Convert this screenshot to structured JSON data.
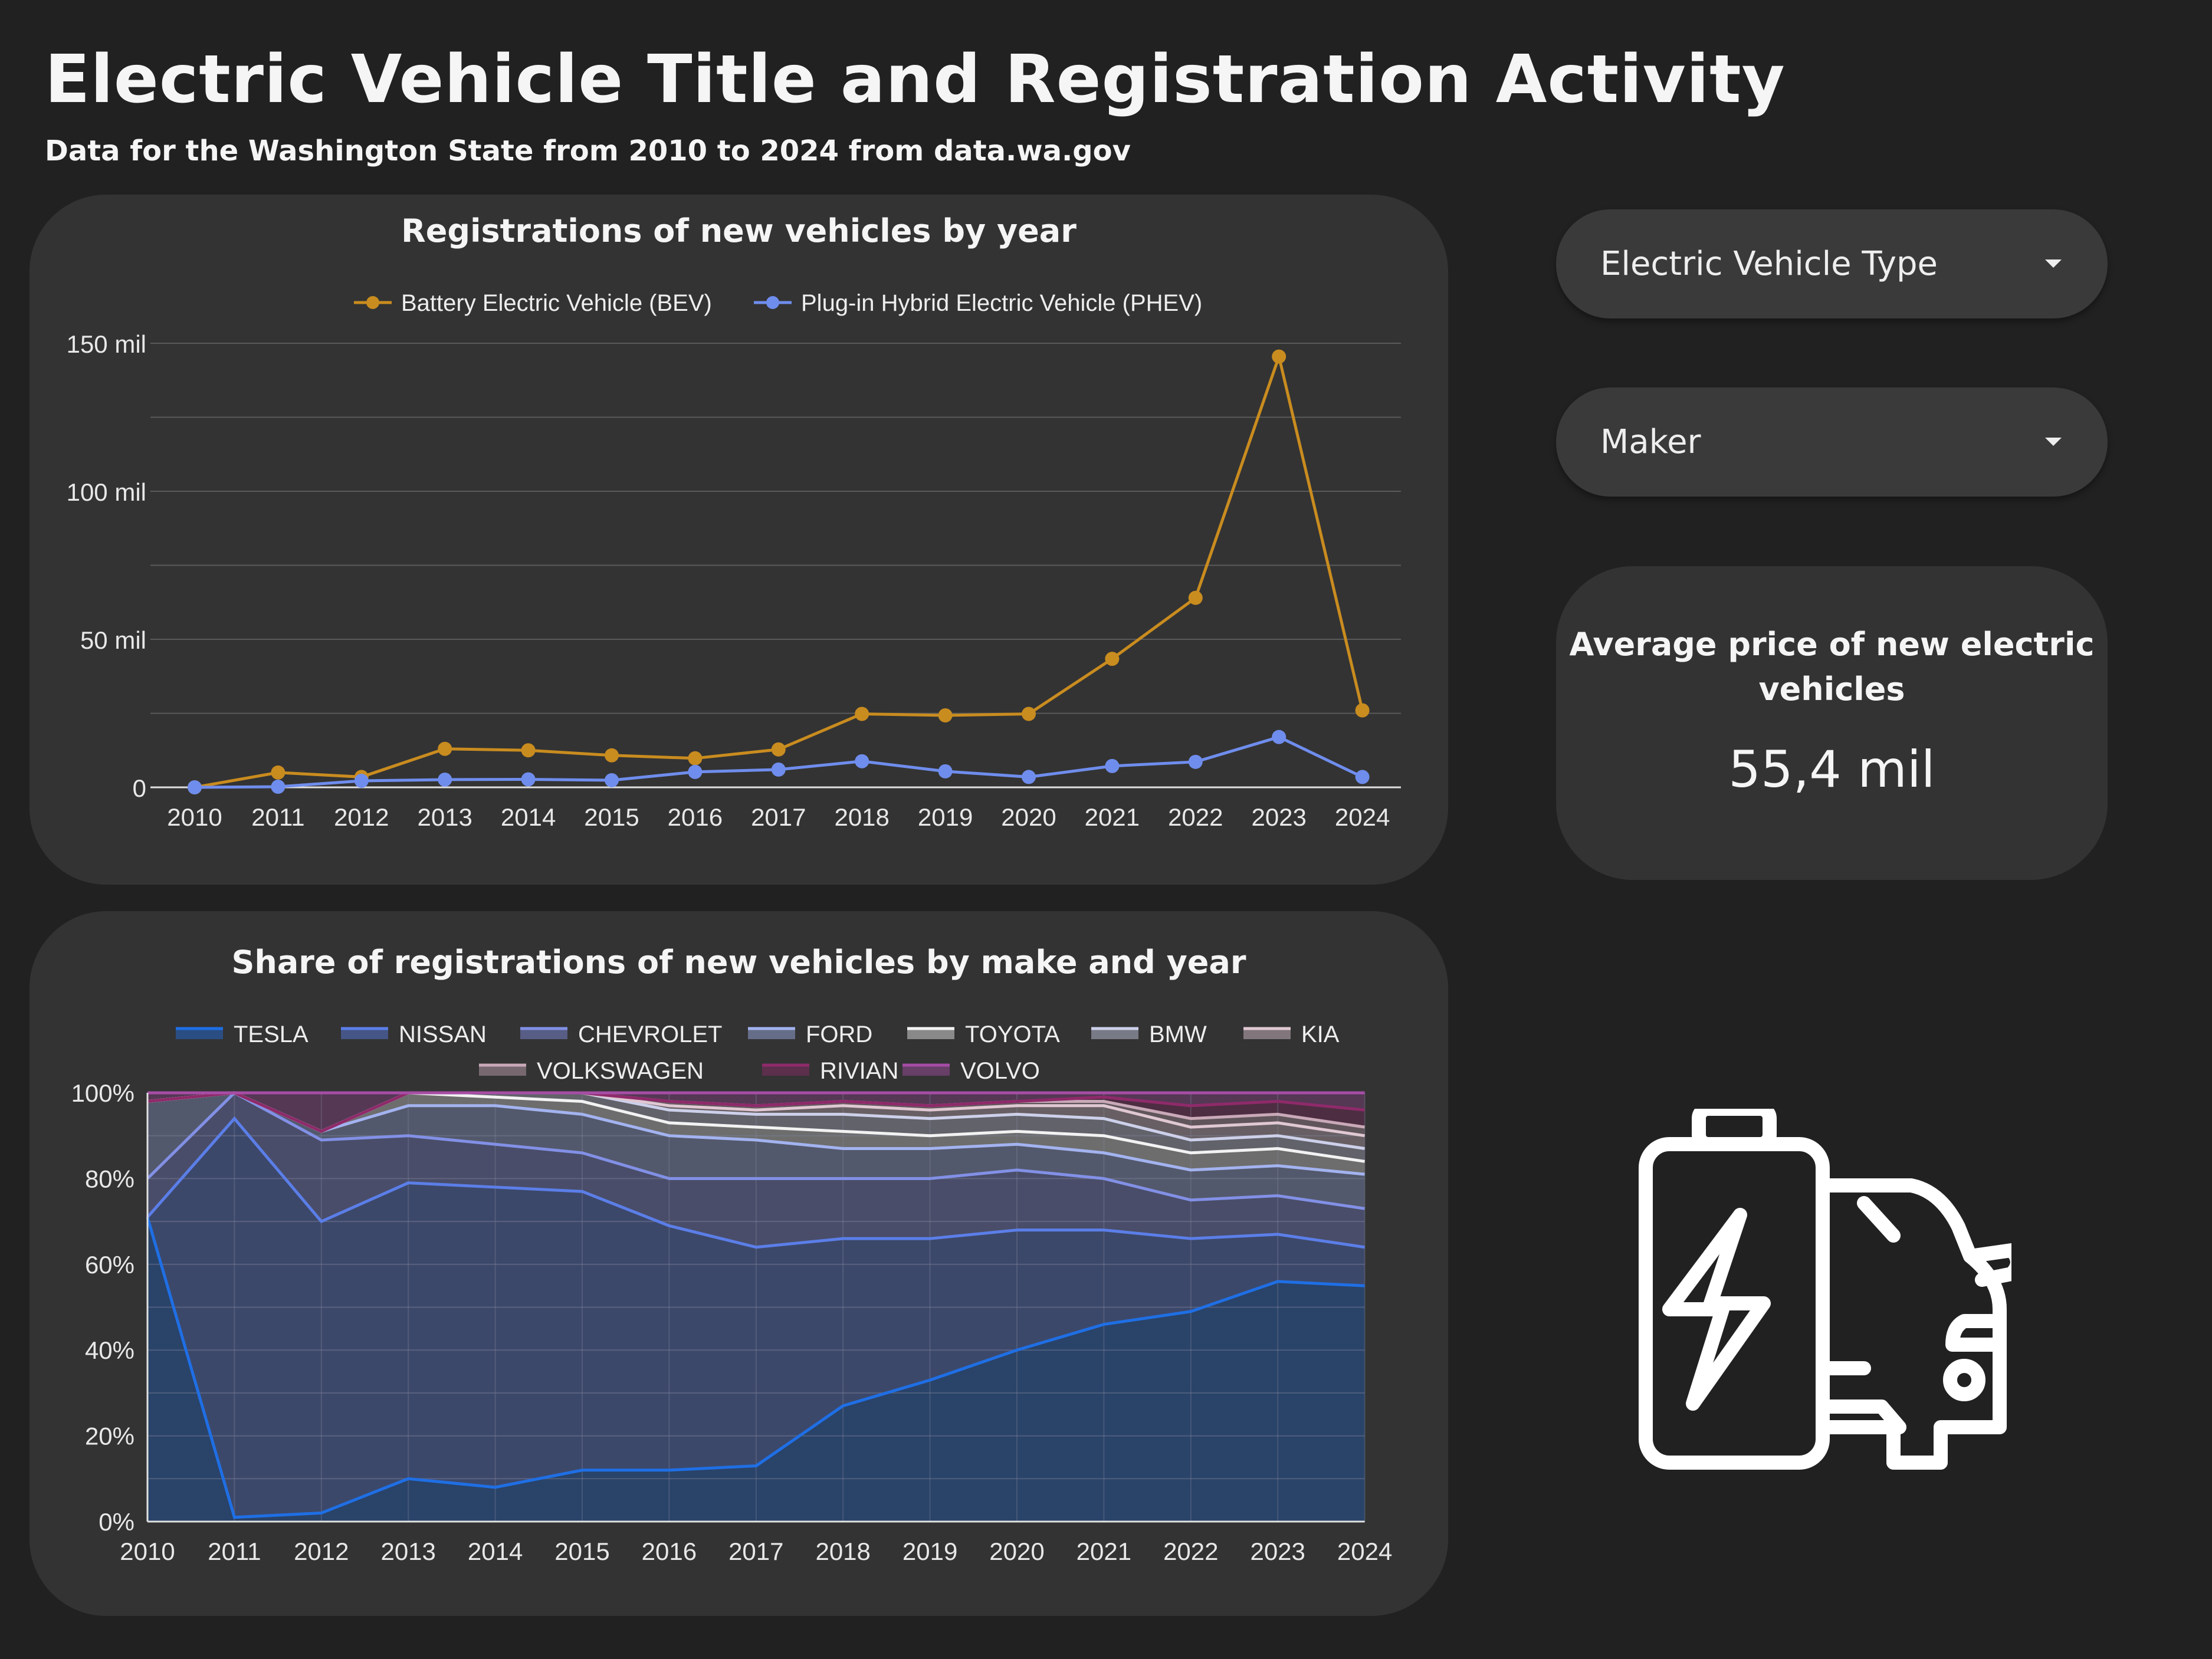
{
  "header": {
    "title": "Electric Vehicle Title and Registration Activity",
    "subtitle": "Data for the Washington State from 2010 to 2024 from data.wa.gov"
  },
  "controls": {
    "type_filter": "Electric Vehicle Type",
    "maker_filter": "Maker"
  },
  "kpi": {
    "title": "Average price of new electric vehicles",
    "value": "55,4 mil"
  },
  "icons": {
    "illustration": "battery-car-icon",
    "dropdown": "caret-down-icon"
  },
  "colors": {
    "background": "#212121",
    "card": "#333333",
    "bev": "#c98c1f",
    "phev": "#6f8ded"
  },
  "chart_data": [
    {
      "type": "line",
      "title": "Registrations of new vehicles by year",
      "x": [
        "2010",
        "2011",
        "2012",
        "2013",
        "2014",
        "2015",
        "2016",
        "2017",
        "2018",
        "2019",
        "2020",
        "2021",
        "2022",
        "2023",
        "2024"
      ],
      "series": [
        {
          "name": "Battery Electric Vehicle (BEV)",
          "color": "#c98c1f",
          "values": [
            0,
            5000,
            3500,
            13000,
            12500,
            10800,
            9800,
            12800,
            24800,
            24300,
            24800,
            43400,
            64000,
            145500,
            26000
          ]
        },
        {
          "name": "Plug-in Hybrid Electric Vehicle (PHEV)",
          "color": "#6f8ded",
          "values": [
            0,
            200,
            2200,
            2600,
            2700,
            2400,
            5200,
            6000,
            8800,
            5400,
            3500,
            7200,
            8600,
            17000,
            3500
          ]
        }
      ],
      "ylim": [
        0,
        150000
      ],
      "yticks": [
        0,
        50000,
        100000,
        150000
      ],
      "ytick_labels": [
        "0",
        "50 mil",
        "100 mil",
        "150 mil"
      ],
      "legend": "top",
      "grid": true
    },
    {
      "type": "area",
      "stacked": true,
      "percent": true,
      "title": "Share of registrations of new vehicles by make and year",
      "x": [
        "2010",
        "2011",
        "2012",
        "2013",
        "2014",
        "2015",
        "2016",
        "2017",
        "2018",
        "2019",
        "2020",
        "2021",
        "2022",
        "2023",
        "2024"
      ],
      "series": [
        {
          "name": "TESLA",
          "color": "#1f6fe5",
          "values": [
            71,
            1,
            2,
            10,
            8,
            12,
            12,
            13,
            27,
            33,
            40,
            46,
            49,
            56,
            55
          ]
        },
        {
          "name": "NISSAN",
          "color": "#5b7ee8",
          "values": [
            0,
            93,
            68,
            69,
            70,
            65,
            57,
            51,
            39,
            33,
            28,
            22,
            17,
            11,
            9
          ]
        },
        {
          "name": "CHEVROLET",
          "color": "#8290e6",
          "values": [
            9,
            6,
            19,
            11,
            10,
            9,
            11,
            16,
            14,
            14,
            14,
            12,
            9,
            9,
            9
          ]
        },
        {
          "name": "FORD",
          "color": "#a3b3f0",
          "values": [
            18,
            0,
            2,
            7,
            9,
            9,
            10,
            9,
            7,
            7,
            6,
            6,
            7,
            7,
            8
          ]
        },
        {
          "name": "TOYOTA",
          "color": "#f2f2f2",
          "values": [
            0,
            0,
            0,
            3,
            2,
            3,
            3,
            3,
            4,
            3,
            3,
            4,
            4,
            4,
            3
          ]
        },
        {
          "name": "BMW",
          "color": "#cdd0ea",
          "values": [
            0,
            0,
            0,
            0,
            1,
            2,
            3,
            3,
            4,
            4,
            4,
            4,
            3,
            3,
            3
          ]
        },
        {
          "name": "KIA",
          "color": "#e0c8d2",
          "values": [
            0,
            0,
            0,
            0,
            0,
            0,
            1,
            1,
            2,
            2,
            2,
            3,
            3,
            3,
            3
          ]
        },
        {
          "name": "VOLKSWAGEN",
          "color": "#c9a9b8",
          "values": [
            0,
            0,
            0,
            0,
            0,
            0,
            1,
            1,
            1,
            1,
            1,
            1,
            2,
            2,
            2
          ]
        },
        {
          "name": "RIVIAN",
          "color": "#8e2a6a",
          "values": [
            0,
            0,
            0,
            0,
            0,
            0,
            0,
            0,
            0,
            0,
            0,
            1,
            3,
            3,
            4
          ]
        },
        {
          "name": "VOLVO",
          "color": "#a64da6",
          "values": [
            2,
            0,
            9,
            0,
            0,
            0,
            2,
            3,
            2,
            3,
            2,
            1,
            3,
            2,
            4
          ]
        }
      ],
      "ylim": [
        0,
        100
      ],
      "yticks": [
        0,
        20,
        40,
        60,
        80,
        100
      ],
      "ytick_labels": [
        "0%",
        "20%",
        "40%",
        "60%",
        "80%",
        "100%"
      ],
      "legend": "top",
      "grid": true
    }
  ]
}
